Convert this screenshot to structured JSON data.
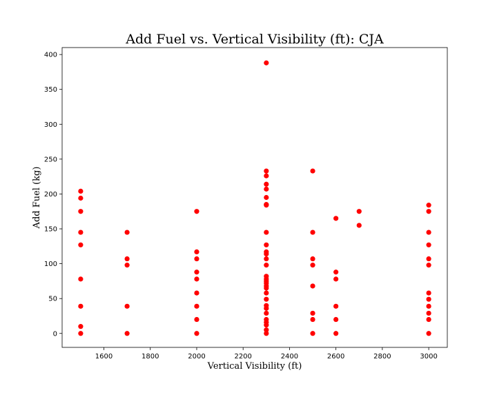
{
  "chart_data": {
    "type": "scatter",
    "title": "Add Fuel vs. Vertical Visibility (ft): CJA",
    "xlabel": "Vertical Visibility (ft)",
    "ylabel": "Add Fuel (kg)",
    "xlim": [
      1420,
      3080
    ],
    "ylim": [
      -20,
      410
    ],
    "xticks": [
      1600,
      1800,
      2000,
      2200,
      2400,
      2600,
      2800,
      3000
    ],
    "yticks": [
      0,
      50,
      100,
      150,
      200,
      250,
      300,
      350,
      400
    ],
    "grid": false,
    "color": "#ff0000",
    "series": [
      {
        "points": [
          {
            "x": 1500,
            "y": 204
          },
          {
            "x": 1500,
            "y": 194
          },
          {
            "x": 1500,
            "y": 175
          },
          {
            "x": 1500,
            "y": 145
          },
          {
            "x": 1500,
            "y": 127
          },
          {
            "x": 1500,
            "y": 78
          },
          {
            "x": 1500,
            "y": 39
          },
          {
            "x": 1500,
            "y": 10
          },
          {
            "x": 1500,
            "y": 0
          },
          {
            "x": 1700,
            "y": 145
          },
          {
            "x": 1700,
            "y": 107
          },
          {
            "x": 1700,
            "y": 98
          },
          {
            "x": 1700,
            "y": 39
          },
          {
            "x": 1700,
            "y": 0
          },
          {
            "x": 2000,
            "y": 175
          },
          {
            "x": 2000,
            "y": 117
          },
          {
            "x": 2000,
            "y": 107
          },
          {
            "x": 2000,
            "y": 88
          },
          {
            "x": 2000,
            "y": 78
          },
          {
            "x": 2000,
            "y": 58
          },
          {
            "x": 2000,
            "y": 39
          },
          {
            "x": 2000,
            "y": 20
          },
          {
            "x": 2000,
            "y": 0
          },
          {
            "x": 2300,
            "y": 388
          },
          {
            "x": 2300,
            "y": 233
          },
          {
            "x": 2300,
            "y": 226
          },
          {
            "x": 2300,
            "y": 214
          },
          {
            "x": 2300,
            "y": 207
          },
          {
            "x": 2300,
            "y": 195
          },
          {
            "x": 2300,
            "y": 185
          },
          {
            "x": 2300,
            "y": 184
          },
          {
            "x": 2300,
            "y": 145
          },
          {
            "x": 2300,
            "y": 127
          },
          {
            "x": 2300,
            "y": 117
          },
          {
            "x": 2300,
            "y": 114
          },
          {
            "x": 2300,
            "y": 107
          },
          {
            "x": 2300,
            "y": 98
          },
          {
            "x": 2300,
            "y": 82
          },
          {
            "x": 2300,
            "y": 78
          },
          {
            "x": 2300,
            "y": 75
          },
          {
            "x": 2300,
            "y": 72
          },
          {
            "x": 2300,
            "y": 68
          },
          {
            "x": 2300,
            "y": 65
          },
          {
            "x": 2300,
            "y": 58
          },
          {
            "x": 2300,
            "y": 49
          },
          {
            "x": 2300,
            "y": 40
          },
          {
            "x": 2300,
            "y": 36
          },
          {
            "x": 2300,
            "y": 29
          },
          {
            "x": 2300,
            "y": 20
          },
          {
            "x": 2300,
            "y": 16
          },
          {
            "x": 2300,
            "y": 12
          },
          {
            "x": 2300,
            "y": 5
          },
          {
            "x": 2300,
            "y": 0
          },
          {
            "x": 2500,
            "y": 233
          },
          {
            "x": 2500,
            "y": 145
          },
          {
            "x": 2500,
            "y": 107
          },
          {
            "x": 2500,
            "y": 98
          },
          {
            "x": 2500,
            "y": 68
          },
          {
            "x": 2500,
            "y": 29
          },
          {
            "x": 2500,
            "y": 20
          },
          {
            "x": 2500,
            "y": 0
          },
          {
            "x": 2600,
            "y": 165
          },
          {
            "x": 2600,
            "y": 88
          },
          {
            "x": 2600,
            "y": 78
          },
          {
            "x": 2600,
            "y": 39
          },
          {
            "x": 2600,
            "y": 20
          },
          {
            "x": 2600,
            "y": 0
          },
          {
            "x": 2700,
            "y": 175
          },
          {
            "x": 2700,
            "y": 155
          },
          {
            "x": 3000,
            "y": 184
          },
          {
            "x": 3000,
            "y": 175
          },
          {
            "x": 3000,
            "y": 145
          },
          {
            "x": 3000,
            "y": 127
          },
          {
            "x": 3000,
            "y": 107
          },
          {
            "x": 3000,
            "y": 98
          },
          {
            "x": 3000,
            "y": 58
          },
          {
            "x": 3000,
            "y": 49
          },
          {
            "x": 3000,
            "y": 39
          },
          {
            "x": 3000,
            "y": 29
          },
          {
            "x": 3000,
            "y": 20
          },
          {
            "x": 3000,
            "y": 0
          }
        ]
      }
    ]
  }
}
